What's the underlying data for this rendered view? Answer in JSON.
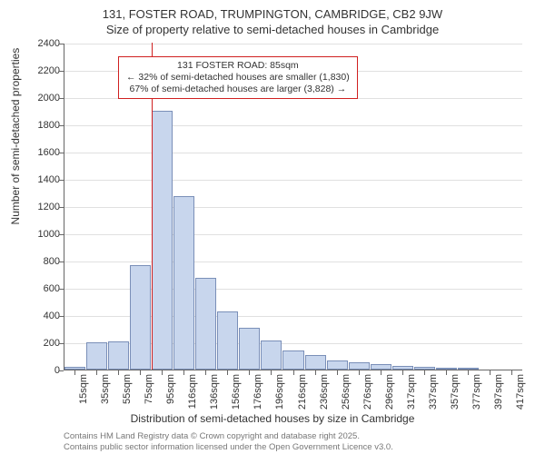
{
  "title": {
    "line1": "131, FOSTER ROAD, TRUMPINGTON, CAMBRIDGE, CB2 9JW",
    "line2": "Size of property relative to semi-detached houses in Cambridge"
  },
  "chart": {
    "type": "histogram",
    "ylabel": "Number of semi-detached properties",
    "xlabel": "Distribution of semi-detached houses by size in Cambridge",
    "ylim": [
      0,
      2400
    ],
    "ytick_step": 200,
    "bar_color": "#c8d6ed",
    "bar_border_color": "#7a8fb8",
    "grid_color": "#e0e0e0",
    "background_color": "#ffffff",
    "vline_color": "#d02020",
    "vline_x": 85,
    "x_start": 15,
    "x_step": 20,
    "x_labels": [
      "15sqm",
      "35sqm",
      "55sqm",
      "75sqm",
      "95sqm",
      "116sqm",
      "136sqm",
      "156sqm",
      "176sqm",
      "196sqm",
      "216sqm",
      "236sqm",
      "256sqm",
      "276sqm",
      "296sqm",
      "317sqm",
      "337sqm",
      "357sqm",
      "377sqm",
      "397sqm",
      "417sqm"
    ],
    "values": [
      20,
      200,
      205,
      770,
      1900,
      1275,
      675,
      425,
      310,
      215,
      140,
      105,
      70,
      55,
      40,
      30,
      22,
      15,
      8,
      0,
      0
    ],
    "title_fontsize": 13,
    "label_fontsize": 12,
    "tick_fontsize": 11
  },
  "annotation": {
    "line1": "131 FOSTER ROAD: 85sqm",
    "line2": "← 32% of semi-detached houses are smaller (1,830)",
    "line3": "67% of semi-detached houses are larger (3,828) →"
  },
  "footer": {
    "line1": "Contains HM Land Registry data © Crown copyright and database right 2025.",
    "line2": "Contains public sector information licensed under the Open Government Licence v3.0."
  }
}
